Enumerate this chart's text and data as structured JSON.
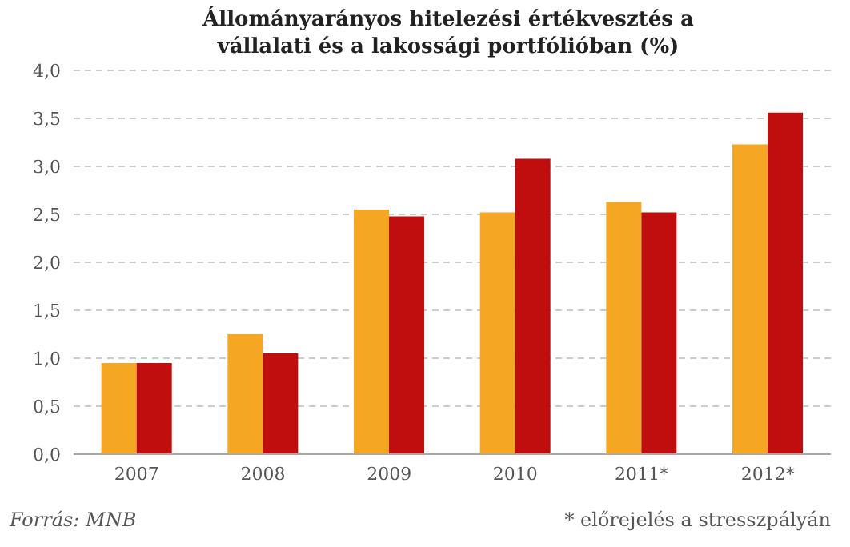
{
  "chart_data": {
    "type": "bar",
    "title": "Állományarányos hitelezési értékvesztés  a vállalati és a lakossági portfólióban (%)",
    "categories": [
      "2007",
      "2008",
      "2009",
      "2010",
      "2011*",
      "2012*"
    ],
    "series": [
      {
        "color": "#f5a623",
        "values": [
          0.95,
          1.25,
          2.55,
          2.52,
          2.63,
          3.23
        ]
      },
      {
        "color": "#c00d0d",
        "values": [
          0.95,
          1.05,
          2.48,
          3.08,
          2.52,
          3.56
        ]
      }
    ],
    "ylim": [
      0,
      4
    ],
    "yticks": [
      {
        "value": 0,
        "label": "0,0"
      },
      {
        "value": 0.5,
        "label": "0,5"
      },
      {
        "value": 1,
        "label": "1,0"
      },
      {
        "value": 1.5,
        "label": "1,5"
      },
      {
        "value": 2,
        "label": "2,0"
      },
      {
        "value": 2.5,
        "label": "2,5"
      },
      {
        "value": 3,
        "label": "3,0"
      },
      {
        "value": 3.5,
        "label": "3,5"
      },
      {
        "value": 4,
        "label": "4,0"
      }
    ],
    "grid": "y",
    "annotations": [
      "Forrás: MNB",
      "* előrejelés a stresszpályán"
    ]
  }
}
